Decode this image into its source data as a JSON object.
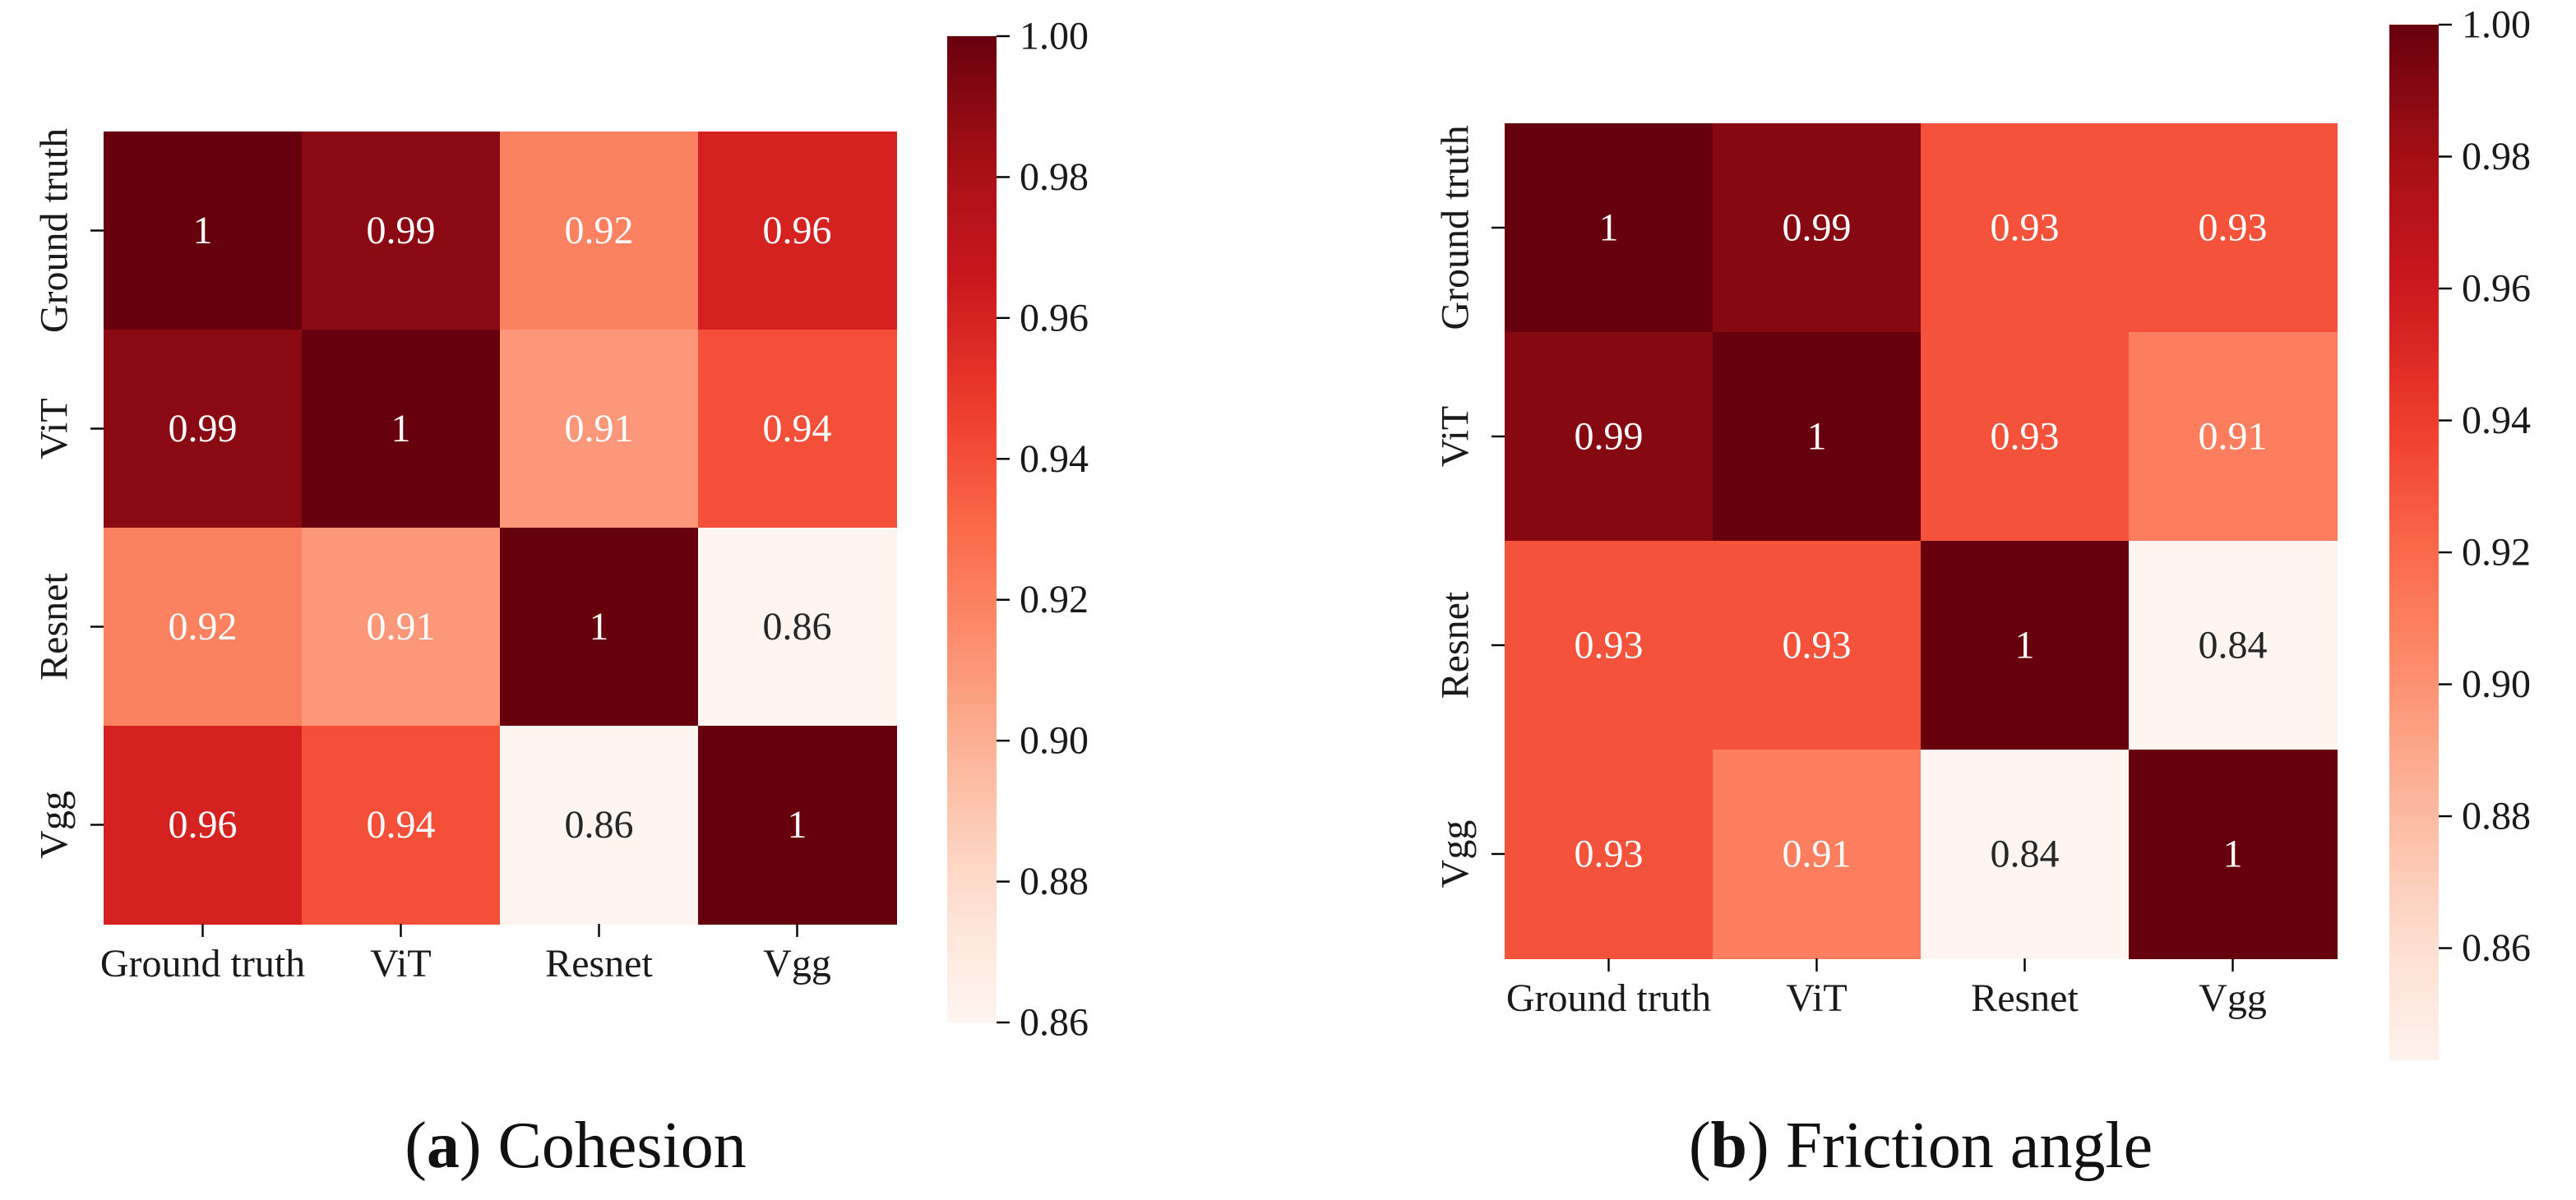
{
  "colorscale": {
    "stops": [
      "#fff5f0",
      "#fee0d2",
      "#fcbba1",
      "#fc9272",
      "#fb6a4a",
      "#ef3b2c",
      "#cb181d",
      "#a50f15",
      "#67000d"
    ],
    "text_dark": "#262626",
    "text_light": "#ffffff"
  },
  "chart_data": [
    {
      "type": "heatmap",
      "panel_letter": "(a)",
      "title": "Cohesion",
      "rows": [
        "Ground truth",
        "ViT",
        "Resnet",
        "Vgg"
      ],
      "columns": [
        "Ground truth",
        "ViT",
        "Resnet",
        "Vgg"
      ],
      "values": [
        [
          1,
          0.99,
          0.92,
          0.96
        ],
        [
          0.99,
          1,
          0.91,
          0.94
        ],
        [
          0.92,
          0.91,
          1,
          0.86
        ],
        [
          0.96,
          0.94,
          0.86,
          1
        ]
      ],
      "value_labels": [
        [
          "1",
          "0.99",
          "0.92",
          "0.96"
        ],
        [
          "0.99",
          "1",
          "0.91",
          "0.94"
        ],
        [
          "0.92",
          "0.91",
          "1",
          "0.86"
        ],
        [
          "0.96",
          "0.94",
          "0.86",
          "1"
        ]
      ],
      "vmin": 0.86,
      "vmax": 1.0,
      "colorbar_range": [
        0.86,
        1.0
      ],
      "colorbar_ticks": [
        1.0,
        0.98,
        0.96,
        0.94,
        0.92,
        0.9,
        0.88,
        0.86
      ],
      "colorbar_tick_labels": [
        "1.00",
        "0.98",
        "0.96",
        "0.94",
        "0.92",
        "0.90",
        "0.88",
        "0.86"
      ]
    },
    {
      "type": "heatmap",
      "panel_letter": "(b)",
      "title": "Friction angle",
      "rows": [
        "Ground truth",
        "ViT",
        "Resnet",
        "Vgg"
      ],
      "columns": [
        "Ground truth",
        "ViT",
        "Resnet",
        "Vgg"
      ],
      "values": [
        [
          1,
          0.99,
          0.93,
          0.93
        ],
        [
          0.99,
          1,
          0.93,
          0.91
        ],
        [
          0.93,
          0.93,
          1,
          0.84
        ],
        [
          0.93,
          0.91,
          0.84,
          1
        ]
      ],
      "value_labels": [
        [
          "1",
          "0.99",
          "0.93",
          "0.93"
        ],
        [
          "0.99",
          "1",
          "0.93",
          "0.91"
        ],
        [
          "0.93",
          "0.93",
          "1",
          "0.84"
        ],
        [
          "0.93",
          "0.91",
          "0.84",
          "1"
        ]
      ],
      "vmin": 0.84,
      "vmax": 1.0,
      "colorbar_range": [
        0.843,
        1.0
      ],
      "colorbar_ticks": [
        1.0,
        0.98,
        0.96,
        0.94,
        0.92,
        0.9,
        0.88,
        0.86
      ],
      "colorbar_tick_labels": [
        "1.00",
        "0.98",
        "0.96",
        "0.94",
        "0.92",
        "0.90",
        "0.88",
        "0.86"
      ]
    }
  ]
}
